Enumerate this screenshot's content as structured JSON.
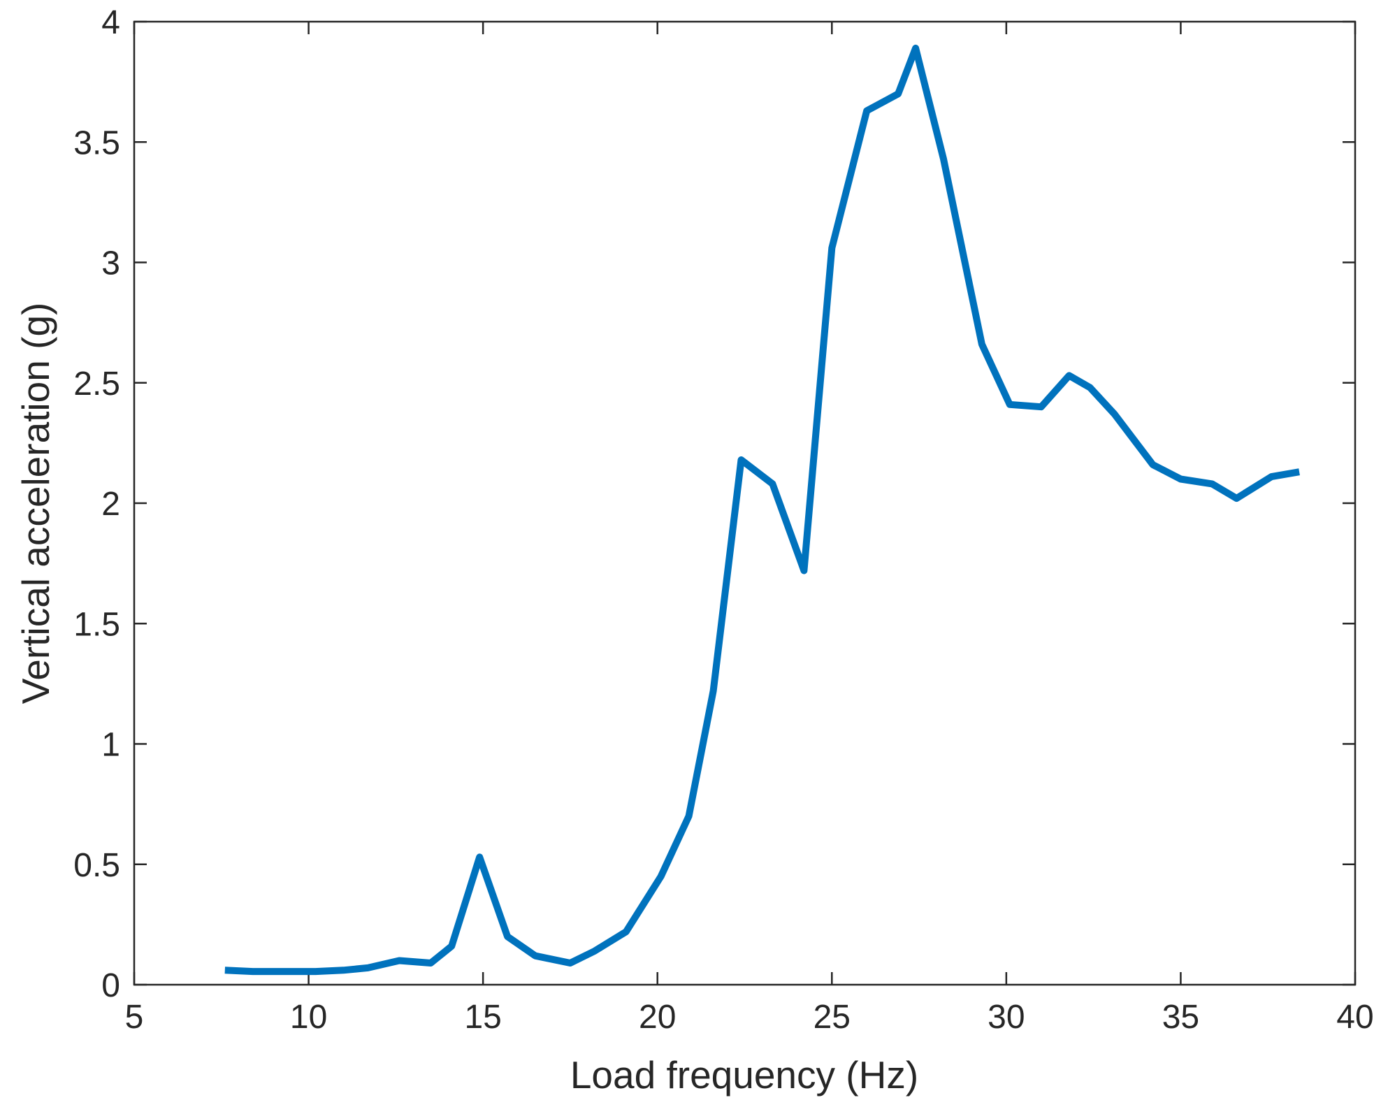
{
  "chart_data": {
    "type": "line",
    "title": "",
    "xlabel": "Load frequency (Hz)",
    "ylabel": "Vertical acceleration (g)",
    "xlim": [
      5,
      40
    ],
    "ylim": [
      0,
      4
    ],
    "xticks": [
      5,
      10,
      15,
      20,
      25,
      30,
      35,
      40
    ],
    "yticks": [
      0,
      0.5,
      1,
      1.5,
      2,
      2.5,
      3,
      3.5,
      4
    ],
    "xtick_labels": [
      "5",
      "10",
      "15",
      "20",
      "25",
      "30",
      "35",
      "40"
    ],
    "ytick_labels": [
      "0",
      "0.5",
      "1",
      "1.5",
      "2",
      "2.5",
      "3",
      "3.5",
      "4"
    ],
    "grid": false,
    "line_color": "#0072BD",
    "axis_color": "#262626",
    "series": [
      {
        "x": [
          7.6,
          8.4,
          9.3,
          10.2,
          11.0,
          11.7,
          12.6,
          13.5,
          14.1,
          14.9,
          15.7,
          16.5,
          17.5,
          18.2,
          19.1,
          20.1,
          20.9,
          21.6,
          22.4,
          23.3,
          24.2,
          25.0,
          26.0,
          26.9,
          27.4,
          28.2,
          29.3,
          30.1,
          31.0,
          31.8,
          32.4,
          33.1,
          34.2,
          35.0,
          35.9,
          36.6,
          37.6,
          38.4
        ],
        "y": [
          0.06,
          0.055,
          0.055,
          0.055,
          0.06,
          0.07,
          0.1,
          0.09,
          0.16,
          0.53,
          0.2,
          0.12,
          0.09,
          0.14,
          0.22,
          0.45,
          0.7,
          1.22,
          2.18,
          2.08,
          1.72,
          3.06,
          3.63,
          3.7,
          3.89,
          3.43,
          2.66,
          2.41,
          2.4,
          2.53,
          2.48,
          2.37,
          2.16,
          2.1,
          2.08,
          2.02,
          2.11,
          2.13
        ]
      }
    ]
  }
}
